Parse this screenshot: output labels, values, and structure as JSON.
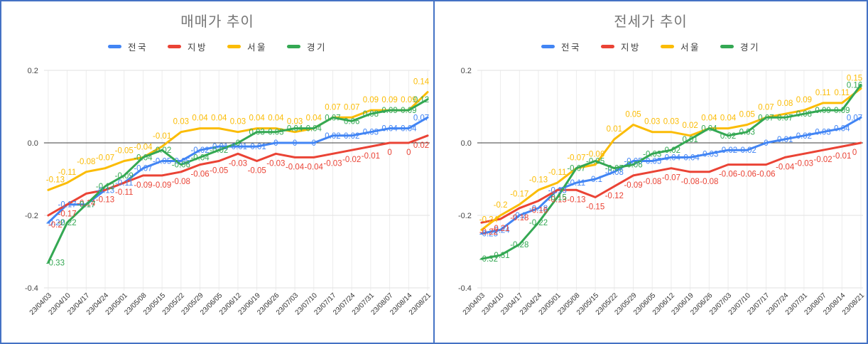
{
  "page": {
    "border_color": "#4472C4",
    "background": "#ffffff"
  },
  "chart_data": [
    {
      "type": "line",
      "title": "매매가 추이",
      "legend_position": "top",
      "grid": true,
      "ylim": [
        -0.4,
        0.2
      ],
      "y_ticks": [
        {
          "label": "0.2",
          "value": 0.2
        },
        {
          "label": "0.0",
          "value": 0
        },
        {
          "label": "-0.2",
          "value": -0.2
        },
        {
          "label": "-0.4",
          "value": -0.4
        }
      ],
      "categories": [
        "23/04/03",
        "23/04/10",
        "23/04/17",
        "23/04/24",
        "23/05/01",
        "23/05/08",
        "23/05/15",
        "23/05/22",
        "23/05/29",
        "23/06/05",
        "23/06/12",
        "23/06/19",
        "23/06/26",
        "23/07/03",
        "23/07/10",
        "23/07/17",
        "23/07/24",
        "23/07/31",
        "23/08/07",
        "23/08/14",
        "23/08/21"
      ],
      "series": [
        {
          "name": "전국",
          "color": "#4285F4",
          "label_side": "center",
          "values": [
            -0.22,
            -0.17,
            -0.17,
            -0.13,
            -0.11,
            -0.07,
            -0.05,
            -0.05,
            -0.02,
            -0.01,
            -0.01,
            -0.01,
            0,
            0,
            0,
            0.02,
            0.02,
            0.03,
            0.04,
            0.04,
            0.07
          ]
        },
        {
          "name": "지방",
          "color": "#EA4335",
          "label_side": "below",
          "values": [
            -0.2,
            -0.17,
            -0.14,
            -0.13,
            -0.11,
            -0.09,
            -0.09,
            -0.08,
            -0.06,
            -0.05,
            -0.03,
            -0.05,
            -0.03,
            -0.04,
            -0.04,
            -0.03,
            -0.02,
            -0.01,
            0,
            0,
            0.02
          ]
        },
        {
          "name": "서울",
          "color": "#FBBC05",
          "label_side": "above",
          "values": [
            -0.13,
            -0.11,
            -0.08,
            -0.07,
            -0.05,
            -0.04,
            -0.01,
            0.03,
            0.04,
            0.04,
            0.03,
            0.04,
            0.04,
            0.03,
            0.04,
            0.07,
            0.07,
            0.09,
            0.09,
            0.09,
            0.14
          ]
        },
        {
          "name": "경기",
          "color": "#34A853",
          "label_side": "center",
          "values": [
            -0.33,
            -0.22,
            -0.17,
            -0.12,
            -0.09,
            -0.04,
            -0.02,
            -0.06,
            -0.04,
            -0.02,
            0,
            0.03,
            0.03,
            0.04,
            0.04,
            0.07,
            0.06,
            0.08,
            0.09,
            0.09,
            0.12
          ]
        }
      ]
    },
    {
      "type": "line",
      "title": "전세가 추이",
      "legend_position": "top",
      "grid": true,
      "ylim": [
        -0.4,
        0.2
      ],
      "y_ticks": [
        {
          "label": "0.2",
          "value": 0.2
        },
        {
          "label": "0.0",
          "value": 0
        },
        {
          "label": "-0.2",
          "value": -0.2
        },
        {
          "label": "-0.4",
          "value": -0.4
        }
      ],
      "categories": [
        "23/04/03",
        "23/04/10",
        "23/04/17",
        "23/04/24",
        "23/05/01",
        "23/05/08",
        "23/05/15",
        "23/05/22",
        "23/05/29",
        "23/06/05",
        "23/06/12",
        "23/06/19",
        "23/06/26",
        "23/07/03",
        "23/07/10",
        "23/07/17",
        "23/07/24",
        "23/07/31",
        "23/08/07",
        "23/08/14",
        "23/08/21"
      ],
      "series": [
        {
          "name": "전국",
          "color": "#4285F4",
          "label_side": "center",
          "values": [
            -0.25,
            -0.24,
            -0.2,
            -0.18,
            -0.13,
            -0.11,
            -0.1,
            -0.08,
            -0.05,
            -0.05,
            -0.04,
            -0.04,
            -0.03,
            -0.02,
            -0.02,
            0,
            0.01,
            0.02,
            0.03,
            0.04,
            0.07
          ]
        },
        {
          "name": "지방",
          "color": "#EA4335",
          "label_side": "below",
          "values": [
            -0.22,
            -0.21,
            -0.18,
            -0.16,
            -0.13,
            -0.13,
            -0.15,
            -0.12,
            -0.09,
            -0.08,
            -0.07,
            -0.08,
            -0.08,
            -0.06,
            -0.06,
            -0.06,
            -0.04,
            -0.03,
            -0.02,
            -0.01,
            0
          ]
        },
        {
          "name": "서울",
          "color": "#FBBC05",
          "label_side": "above",
          "values": [
            -0.24,
            -0.2,
            -0.17,
            -0.13,
            -0.11,
            -0.07,
            -0.06,
            0.01,
            0.05,
            0.03,
            0.03,
            0.02,
            0.04,
            0.04,
            0.05,
            0.07,
            0.08,
            0.09,
            0.11,
            0.11,
            0.15
          ]
        },
        {
          "name": "경기",
          "color": "#34A853",
          "label_side": "center",
          "values": [
            -0.32,
            -0.31,
            -0.28,
            -0.22,
            -0.15,
            -0.07,
            -0.05,
            -0.07,
            -0.06,
            -0.03,
            -0.02,
            0.01,
            0.04,
            0.02,
            0.03,
            0.07,
            0.07,
            0.08,
            0.09,
            0.09,
            0.16
          ]
        }
      ]
    }
  ]
}
